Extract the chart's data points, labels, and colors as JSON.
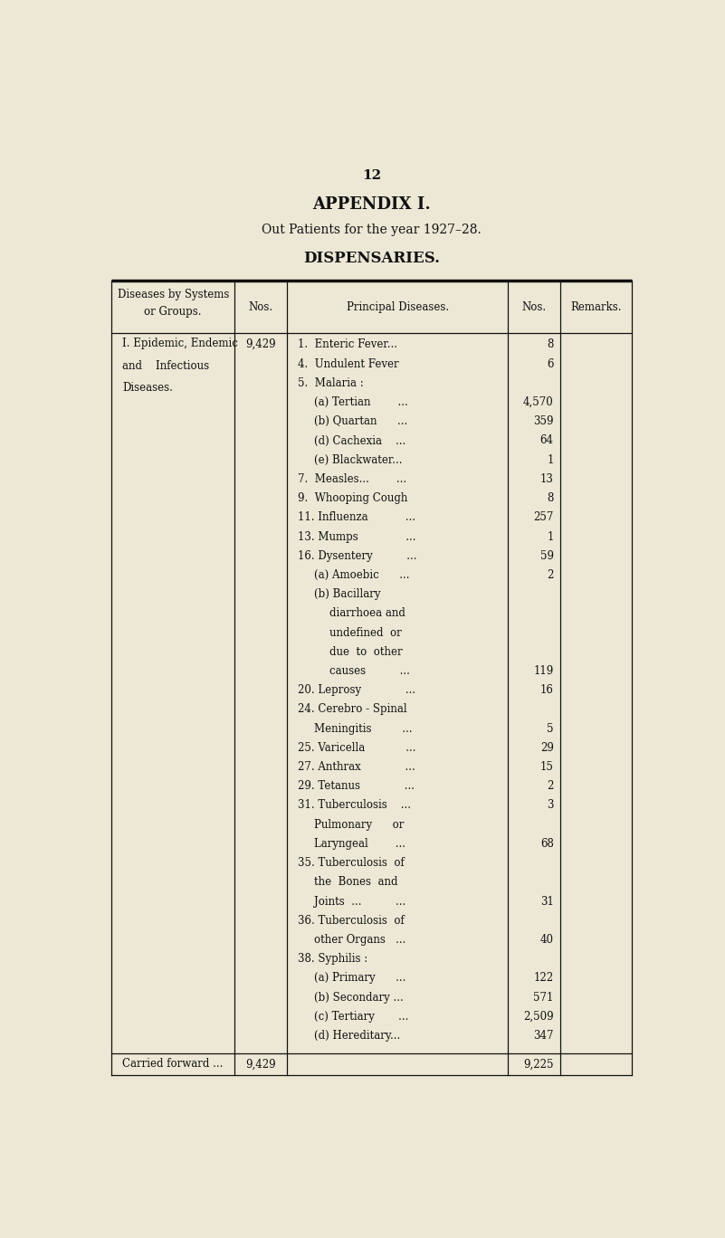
{
  "page_number": "12",
  "title1": "APPENDIX I.",
  "title2": "Out Patients for the year 1927–28.",
  "title3": "DISPENSARIES.",
  "bg_color": "#ece8d5",
  "text_color": "#111111",
  "group_label": [
    "I. Epidemic, Endemic",
    "and    Infectious",
    "Diseases."
  ],
  "group_nos": "9,429",
  "diseases": [
    {
      "text": "1.  Enteric Fever...",
      "nos": "8",
      "indent": 0
    },
    {
      "text": "4.  Undulent Fever",
      "nos": "6",
      "indent": 0
    },
    {
      "text": "5.  Malaria :",
      "nos": "",
      "indent": 0
    },
    {
      "text": "(a) Tertian        ...",
      "nos": "4,570",
      "indent": 1
    },
    {
      "text": "(b) Quartan      ...",
      "nos": "359",
      "indent": 1
    },
    {
      "text": "(d) Cachexia    ...",
      "nos": "64",
      "indent": 1
    },
    {
      "text": "(e) Blackwater...",
      "nos": "1",
      "indent": 1
    },
    {
      "text": "7.  Measles...        ...",
      "nos": "13",
      "indent": 0
    },
    {
      "text": "9.  Whooping Cough",
      "nos": "8",
      "indent": 0
    },
    {
      "text": "11. Influenza           ...",
      "nos": "257",
      "indent": 0
    },
    {
      "text": "13. Mumps              ...",
      "nos": "1",
      "indent": 0
    },
    {
      "text": "16. Dysentery          ...",
      "nos": "59",
      "indent": 0
    },
    {
      "text": "(a) Amoebic      ...",
      "nos": "2",
      "indent": 1
    },
    {
      "text": "(b) Bacillary",
      "nos": "",
      "indent": 1
    },
    {
      "text": "diarrhoea and",
      "nos": "",
      "indent": 2
    },
    {
      "text": "undefined  or",
      "nos": "",
      "indent": 2
    },
    {
      "text": "due  to  other",
      "nos": "",
      "indent": 2
    },
    {
      "text": "causes          ...",
      "nos": "119",
      "indent": 2
    },
    {
      "text": "20. Leprosy             ...",
      "nos": "16",
      "indent": 0
    },
    {
      "text": "24. Cerebro - Spinal",
      "nos": "",
      "indent": 0
    },
    {
      "text": "Meningitis         ...",
      "nos": "5",
      "indent": 1
    },
    {
      "text": "25. Varicella            ...",
      "nos": "29",
      "indent": 0
    },
    {
      "text": "27. Anthrax             ...",
      "nos": "15",
      "indent": 0
    },
    {
      "text": "29. Tetanus             ...",
      "nos": "2",
      "indent": 0
    },
    {
      "text": "31. Tuberculosis    ...",
      "nos": "3",
      "indent": 0
    },
    {
      "text": "Pulmonary      or",
      "nos": "",
      "indent": 1
    },
    {
      "text": "Laryngeal        ...",
      "nos": "68",
      "indent": 1
    },
    {
      "text": "35. Tuberculosis  of",
      "nos": "",
      "indent": 0
    },
    {
      "text": "the  Bones  and",
      "nos": "",
      "indent": 1
    },
    {
      "text": "Joints  ...          ...",
      "nos": "31",
      "indent": 1
    },
    {
      "text": "36. Tuberculosis  of",
      "nos": "",
      "indent": 0
    },
    {
      "text": "other Organs   ...",
      "nos": "40",
      "indent": 1
    },
    {
      "text": "38. Syphilis :",
      "nos": "",
      "indent": 0
    },
    {
      "text": "(a) Primary      ...",
      "nos": "122",
      "indent": 1
    },
    {
      "text": "(b) Secondary ...",
      "nos": "571",
      "indent": 1
    },
    {
      "text": "(c) Tertiary       ...",
      "nos": "2,509",
      "indent": 1
    },
    {
      "text": "(d) Hereditary...",
      "nos": "347",
      "indent": 1
    }
  ],
  "footer_left": "Carried forward ...",
  "footer_nos_col1": "9,429",
  "footer_nos_col3": "9,225"
}
